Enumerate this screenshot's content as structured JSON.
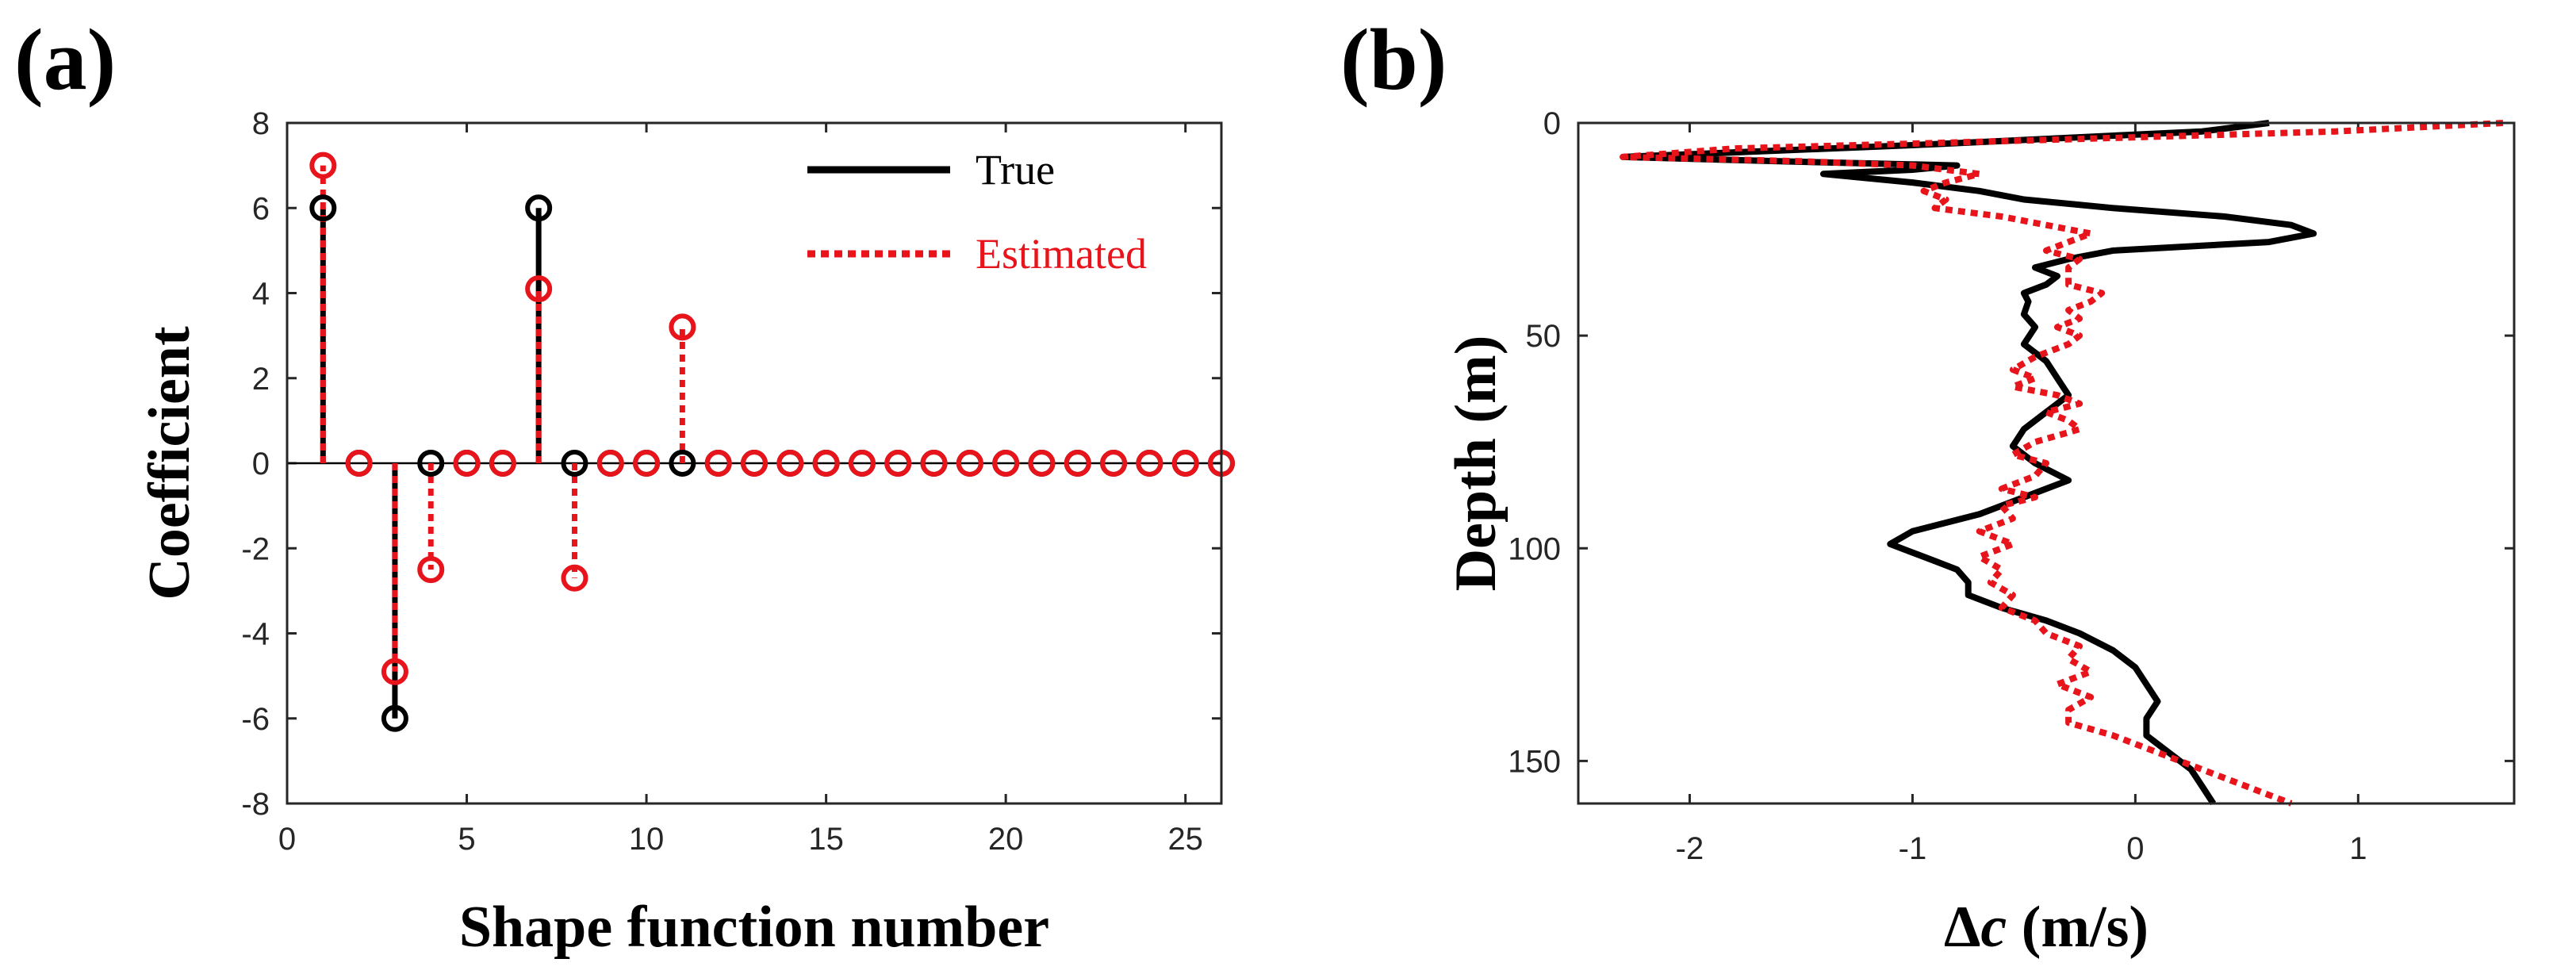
{
  "colors": {
    "true": "#000000",
    "estimated": "#e8141c",
    "axis": "#262626",
    "background": "#ffffff"
  },
  "chart_data": [
    {
      "panel": "(a)",
      "type": "stem",
      "xlabel": "Shape function number",
      "ylabel": "Coefficient",
      "xlim": [
        0,
        26
      ],
      "ylim": [
        -8,
        8
      ],
      "xticks": [
        "0",
        "5",
        "10",
        "15",
        "20",
        "25"
      ],
      "yticks": [
        "8",
        "6",
        "4",
        "2",
        "0",
        "-2",
        "-4",
        "-6",
        "-8"
      ],
      "legend": {
        "position": "top-right",
        "entries": [
          "True",
          "Estimated"
        ]
      },
      "x": [
        1,
        2,
        3,
        4,
        5,
        6,
        7,
        8,
        9,
        10,
        11,
        12,
        13,
        14,
        15,
        16,
        17,
        18,
        19,
        20,
        21,
        22,
        23,
        24,
        25,
        26
      ],
      "series": [
        {
          "name": "True",
          "values": [
            6,
            0,
            -6,
            0,
            0,
            0,
            6,
            0,
            0,
            0,
            0,
            0,
            0,
            0,
            0,
            0,
            0,
            0,
            0,
            0,
            0,
            0,
            0,
            0,
            0,
            0
          ]
        },
        {
          "name": "Estimated",
          "values": [
            7,
            0,
            -4.9,
            -2.5,
            0,
            0,
            4.1,
            -2.7,
            0,
            0,
            3.2,
            0,
            0,
            0,
            0,
            0,
            0,
            0,
            0,
            0,
            0,
            0,
            0,
            0,
            0,
            0
          ]
        }
      ]
    },
    {
      "panel": "(b)",
      "type": "line",
      "xlabel_symbol": "Δ",
      "xlabel_var": "c",
      "xlabel_unit": " (m/s)",
      "ylabel": "Depth (m)",
      "xlim": [
        -2.5,
        1.7
      ],
      "ylim": [
        0,
        160
      ],
      "y_reversed": true,
      "xticks": [
        "-2",
        "-1",
        "0",
        "1"
      ],
      "yticks": [
        "0",
        "50",
        "100",
        "150"
      ],
      "series": [
        {
          "name": "True",
          "depth": [
            0,
            2,
            5,
            8,
            9,
            10,
            11,
            12,
            14,
            16,
            18,
            20,
            22,
            24,
            26,
            28,
            30,
            32,
            34,
            36,
            38,
            40,
            42,
            45,
            48,
            52,
            56,
            60,
            64,
            68,
            72,
            76,
            80,
            84,
            88,
            92,
            96,
            99,
            101,
            103,
            105,
            108,
            111,
            114,
            117,
            120,
            124,
            128,
            132,
            136,
            140,
            144,
            148,
            152,
            156,
            160
          ],
          "values": [
            0.6,
            0.3,
            -0.9,
            -2.3,
            -1.6,
            -0.8,
            -1.0,
            -1.4,
            -1.0,
            -0.7,
            -0.5,
            -0.1,
            0.4,
            0.7,
            0.8,
            0.6,
            -0.1,
            -0.3,
            -0.45,
            -0.35,
            -0.4,
            -0.5,
            -0.48,
            -0.5,
            -0.45,
            -0.5,
            -0.4,
            -0.35,
            -0.3,
            -0.4,
            -0.5,
            -0.55,
            -0.45,
            -0.3,
            -0.5,
            -0.7,
            -1.0,
            -1.1,
            -1.0,
            -0.9,
            -0.8,
            -0.75,
            -0.75,
            -0.6,
            -0.4,
            -0.25,
            -0.1,
            0.0,
            0.05,
            0.1,
            0.05,
            0.05,
            0.15,
            0.25,
            0.3,
            0.35
          ]
        },
        {
          "name": "Estimated",
          "depth": [
            0,
            2,
            4,
            6,
            8,
            9,
            10,
            12,
            14,
            16,
            18,
            20,
            22,
            24,
            26,
            28,
            30,
            32,
            34,
            36,
            38,
            40,
            42,
            44,
            46,
            48,
            50,
            52,
            55,
            58,
            60,
            62,
            64,
            66,
            68,
            70,
            72,
            75,
            78,
            80,
            83,
            86,
            88,
            90,
            93,
            96,
            99,
            102,
            105,
            108,
            111,
            114,
            117,
            120,
            123,
            126,
            129,
            132,
            135,
            138,
            141,
            144,
            147,
            150,
            153,
            156,
            160
          ],
          "values": [
            1.65,
            0.9,
            -0.4,
            -1.8,
            -2.3,
            -1.5,
            -1.0,
            -0.7,
            -0.85,
            -0.95,
            -0.85,
            -0.9,
            -0.6,
            -0.4,
            -0.2,
            -0.3,
            -0.4,
            -0.25,
            -0.3,
            -0.3,
            -0.3,
            -0.15,
            -0.2,
            -0.3,
            -0.25,
            -0.35,
            -0.25,
            -0.3,
            -0.45,
            -0.55,
            -0.45,
            -0.55,
            -0.35,
            -0.25,
            -0.4,
            -0.3,
            -0.25,
            -0.45,
            -0.55,
            -0.4,
            -0.45,
            -0.6,
            -0.45,
            -0.6,
            -0.55,
            -0.7,
            -0.55,
            -0.7,
            -0.6,
            -0.65,
            -0.55,
            -0.6,
            -0.45,
            -0.4,
            -0.25,
            -0.3,
            -0.2,
            -0.35,
            -0.2,
            -0.3,
            -0.3,
            -0.1,
            0.05,
            0.2,
            0.35,
            0.5,
            0.7
          ]
        }
      ]
    }
  ]
}
